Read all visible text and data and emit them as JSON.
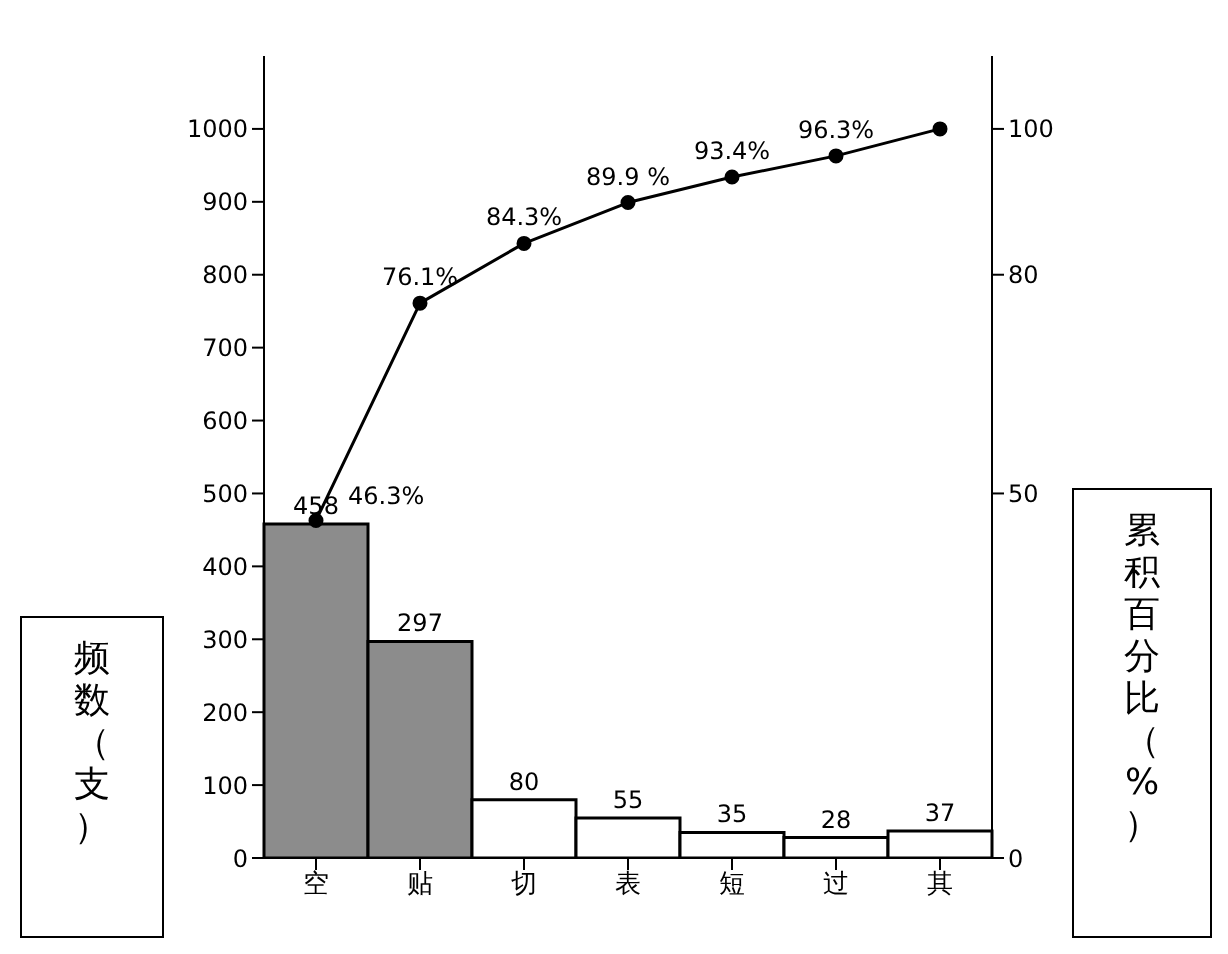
{
  "chart_data": {
    "type": "bar",
    "categories": [
      "空",
      "贴",
      "切",
      "表",
      "短",
      "过",
      "其"
    ],
    "ylabel": "频数（支）",
    "y2label": "累积百分比（%）",
    "series": [
      {
        "colors": [
          "#8c8c8c",
          "#8c8c8c",
          "#ffffff",
          "#ffffff",
          "#ffffff",
          "#ffffff",
          "#ffffff"
        ],
        "values": [
          458,
          297,
          80,
          55,
          35,
          28,
          37
        ]
      },
      {
        "type": "line",
        "axis": "y2",
        "color": "#000000",
        "values": [
          46.3,
          76.1,
          84.3,
          89.9,
          93.4,
          96.3,
          100
        ],
        "value_labels": [
          "46.3%",
          "76.1%",
          "84.3%",
          "89.9 %",
          "93.4%",
          "96.3%",
          null
        ]
      }
    ],
    "data_labels": true,
    "marker": "circle",
    "grid": false,
    "legend": false,
    "ylim": [
      0,
      1100
    ],
    "yticks": [
      0,
      100,
      200,
      300,
      400,
      500,
      600,
      700,
      800,
      900,
      {
        "value": 1000,
        "label": "1000"
      }
    ],
    "y2lim": [
      0,
      110
    ],
    "y2ticks": [
      0,
      50,
      80,
      100
    ]
  }
}
